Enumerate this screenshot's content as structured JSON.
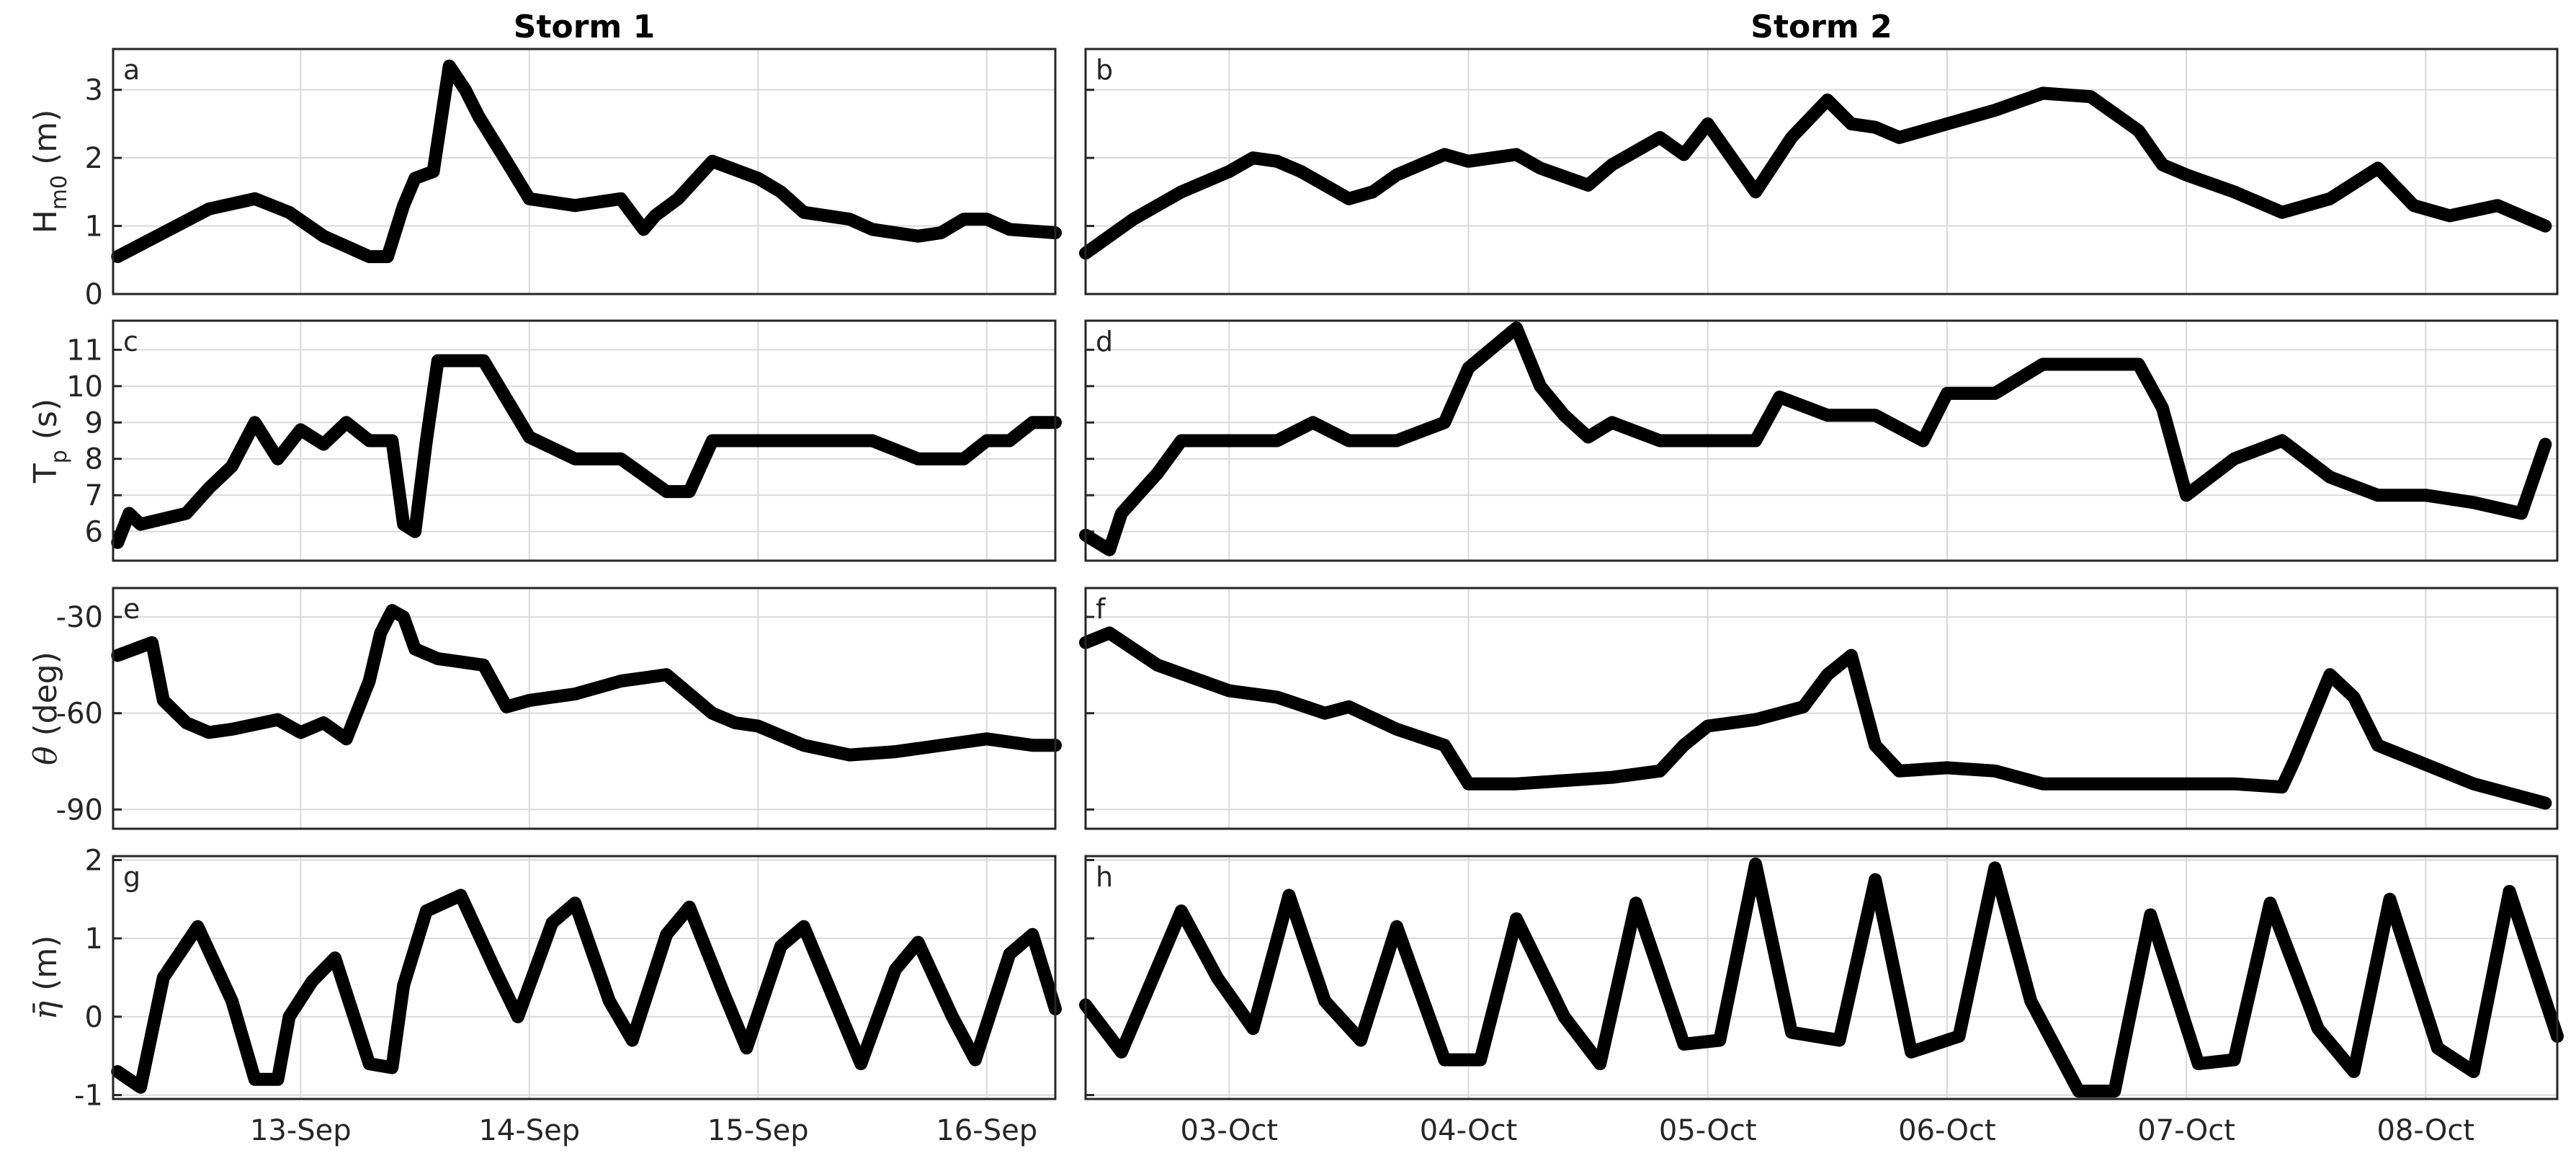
{
  "chart_data": [
    {
      "type": "line",
      "panel": "a",
      "title": "Storm 1",
      "ylabel": "H",
      "ylabel_sub": "m0",
      "ylabel_unit": " (m)",
      "ylim": [
        0,
        3.6
      ],
      "yticks": [
        0,
        1,
        2,
        3
      ],
      "x_dates": [
        "13-Sep",
        "14-Sep",
        "15-Sep",
        "16-Sep"
      ],
      "xlim_days": [
        -0.82,
        3.3
      ],
      "series": [
        {
          "x": [
            -0.8,
            -0.6,
            -0.4,
            -0.2,
            -0.05,
            0.1,
            0.2,
            0.3,
            0.38,
            0.45,
            0.5,
            0.58,
            0.65,
            0.72,
            0.78,
            0.9,
            1.0,
            1.2,
            1.4,
            1.5,
            1.55,
            1.65,
            1.8,
            2.0,
            2.1,
            2.2,
            2.4,
            2.5,
            2.7,
            2.8,
            2.9,
            3.0,
            3.1,
            3.3
          ],
          "values": [
            0.55,
            0.9,
            1.25,
            1.4,
            1.2,
            0.85,
            0.7,
            0.55,
            0.55,
            1.3,
            1.7,
            1.8,
            3.35,
            3.0,
            2.6,
            1.95,
            1.4,
            1.3,
            1.4,
            0.95,
            1.15,
            1.4,
            1.95,
            1.7,
            1.5,
            1.2,
            1.1,
            0.95,
            0.85,
            0.9,
            1.1,
            1.1,
            0.95,
            0.9
          ]
        }
      ]
    },
    {
      "type": "line",
      "panel": "b",
      "title": "Storm 2",
      "ylim": [
        0,
        3.6
      ],
      "yticks": [
        0,
        1,
        2,
        3
      ],
      "x_dates": [
        "03-Oct",
        "04-Oct",
        "05-Oct",
        "06-Oct",
        "07-Oct",
        "08-Oct"
      ],
      "xlim_days": [
        -0.6,
        5.55
      ],
      "series": [
        {
          "x": [
            -0.6,
            -0.4,
            -0.2,
            0.0,
            0.1,
            0.2,
            0.3,
            0.5,
            0.6,
            0.7,
            0.9,
            1.0,
            1.2,
            1.3,
            1.5,
            1.6,
            1.8,
            1.9,
            2.0,
            2.1,
            2.2,
            2.35,
            2.5,
            2.6,
            2.7,
            2.8,
            3.0,
            3.2,
            3.4,
            3.6,
            3.8,
            3.9,
            4.0,
            4.2,
            4.4,
            4.6,
            4.8,
            4.95,
            5.1,
            5.3,
            5.5
          ],
          "values": [
            0.6,
            1.1,
            1.5,
            1.8,
            2.0,
            1.95,
            1.8,
            1.4,
            1.5,
            1.75,
            2.05,
            1.95,
            2.05,
            1.85,
            1.6,
            1.9,
            2.3,
            2.05,
            2.5,
            2.0,
            1.5,
            2.3,
            2.85,
            2.5,
            2.45,
            2.3,
            2.5,
            2.7,
            2.95,
            2.9,
            2.4,
            1.9,
            1.75,
            1.5,
            1.2,
            1.4,
            1.85,
            1.3,
            1.15,
            1.3,
            1.0
          ]
        }
      ]
    },
    {
      "type": "line",
      "panel": "c",
      "ylabel": "T",
      "ylabel_sub": "p",
      "ylabel_unit": " (s)",
      "ylim": [
        5.2,
        11.8
      ],
      "yticks": [
        6,
        7,
        8,
        9,
        10,
        11
      ],
      "xlim_days": [
        -0.82,
        3.3
      ],
      "series": [
        {
          "x": [
            -0.8,
            -0.75,
            -0.7,
            -0.5,
            -0.4,
            -0.3,
            -0.2,
            -0.1,
            0.0,
            0.1,
            0.2,
            0.3,
            0.4,
            0.45,
            0.5,
            0.55,
            0.6,
            0.8,
            1.0,
            1.2,
            1.4,
            1.6,
            1.7,
            1.8,
            2.0,
            2.2,
            2.5,
            2.7,
            2.8,
            2.9,
            3.0,
            3.1,
            3.2,
            3.3
          ],
          "values": [
            5.7,
            6.5,
            6.2,
            6.5,
            7.2,
            7.8,
            9.0,
            8.0,
            8.8,
            8.4,
            9.0,
            8.5,
            8.5,
            6.2,
            6.0,
            8.5,
            10.7,
            10.7,
            8.6,
            8.0,
            8.0,
            7.1,
            7.1,
            8.5,
            8.5,
            8.5,
            8.5,
            8.0,
            8.0,
            8.0,
            8.5,
            8.5,
            9.0,
            9.0
          ]
        }
      ]
    },
    {
      "type": "line",
      "panel": "d",
      "ylim": [
        5.2,
        11.8
      ],
      "yticks": [
        6,
        7,
        8,
        9,
        10,
        11
      ],
      "xlim_days": [
        -0.6,
        5.55
      ],
      "series": [
        {
          "x": [
            -0.6,
            -0.5,
            -0.45,
            -0.3,
            -0.2,
            0.0,
            0.2,
            0.35,
            0.5,
            0.7,
            0.9,
            1.0,
            1.2,
            1.3,
            1.4,
            1.5,
            1.6,
            1.8,
            2.0,
            2.2,
            2.3,
            2.5,
            2.7,
            2.9,
            3.0,
            3.2,
            3.4,
            3.6,
            3.7,
            3.8,
            3.9,
            4.0,
            4.1,
            4.2,
            4.4,
            4.6,
            4.8,
            5.0,
            5.2,
            5.4,
            5.5
          ],
          "values": [
            5.9,
            5.5,
            6.5,
            7.6,
            8.5,
            8.5,
            8.5,
            9.0,
            8.5,
            8.5,
            9.0,
            10.5,
            11.6,
            10.0,
            9.2,
            8.6,
            9.0,
            8.5,
            8.5,
            8.5,
            9.7,
            9.2,
            9.2,
            8.5,
            9.8,
            9.8,
            10.6,
            10.6,
            10.6,
            10.6,
            9.4,
            7.0,
            7.5,
            8.0,
            8.5,
            7.5,
            7.0,
            7.0,
            6.8,
            6.5,
            8.4
          ]
        }
      ]
    },
    {
      "type": "line",
      "panel": "e",
      "ylabel": "θ",
      "ylabel_unit": " (deg)",
      "ylim": [
        -96,
        -21
      ],
      "yticks": [
        -90,
        -60,
        -30
      ],
      "xlim_days": [
        -0.82,
        3.3
      ],
      "series": [
        {
          "x": [
            -0.8,
            -0.65,
            -0.6,
            -0.5,
            -0.4,
            -0.3,
            -0.1,
            0.0,
            0.1,
            0.2,
            0.3,
            0.35,
            0.4,
            0.45,
            0.5,
            0.6,
            0.8,
            0.9,
            1.0,
            1.2,
            1.4,
            1.6,
            1.8,
            1.9,
            2.0,
            2.2,
            2.4,
            2.6,
            2.8,
            3.0,
            3.2,
            3.3
          ],
          "values": [
            -42,
            -38,
            -56,
            -63,
            -66,
            -65,
            -62,
            -66,
            -63,
            -68,
            -50,
            -35,
            -28,
            -30,
            -40,
            -43,
            -45,
            -58,
            -56,
            -54,
            -50,
            -48,
            -60,
            -63,
            -64,
            -70,
            -73,
            -72,
            -70,
            -68,
            -70,
            -70
          ]
        }
      ]
    },
    {
      "type": "line",
      "panel": "f",
      "ylim": [
        -96,
        -21
      ],
      "yticks": [
        -90,
        -60,
        -30
      ],
      "xlim_days": [
        -0.6,
        5.55
      ],
      "series": [
        {
          "x": [
            -0.6,
            -0.5,
            -0.3,
            0.0,
            0.2,
            0.4,
            0.5,
            0.7,
            0.9,
            1.0,
            1.2,
            1.4,
            1.6,
            1.8,
            1.9,
            2.0,
            2.2,
            2.4,
            2.5,
            2.6,
            2.7,
            2.8,
            3.0,
            3.2,
            3.4,
            3.6,
            3.8,
            4.0,
            4.2,
            4.4,
            4.45,
            4.6,
            4.7,
            4.8,
            5.0,
            5.2,
            5.5
          ],
          "values": [
            -38,
            -35,
            -45,
            -53,
            -55,
            -60,
            -58,
            -65,
            -70,
            -82,
            -82,
            -81,
            -80,
            -78,
            -70,
            -64,
            -62,
            -58,
            -48,
            -42,
            -70,
            -78,
            -77,
            -78,
            -82,
            -82,
            -82,
            -82,
            -82,
            -83,
            -75,
            -48,
            -55,
            -70,
            -76,
            -82,
            -88
          ]
        }
      ]
    },
    {
      "type": "line",
      "panel": "g",
      "ylabel": "η̄",
      "ylabel_unit": " (m)",
      "ylim": [
        -1.05,
        2.05
      ],
      "yticks": [
        -1,
        0,
        1,
        2
      ],
      "x_dates": [
        "13-Sep",
        "14-Sep",
        "15-Sep",
        "16-Sep"
      ],
      "xlim_days": [
        -0.82,
        3.3
      ],
      "series": [
        {
          "x": [
            -0.8,
            -0.7,
            -0.6,
            -0.45,
            -0.3,
            -0.2,
            -0.1,
            -0.05,
            0.05,
            0.15,
            0.3,
            0.4,
            0.45,
            0.55,
            0.7,
            0.85,
            0.95,
            1.1,
            1.2,
            1.35,
            1.45,
            1.6,
            1.7,
            1.85,
            1.95,
            2.1,
            2.2,
            2.35,
            2.45,
            2.6,
            2.7,
            2.85,
            2.95,
            3.1,
            3.2,
            3.3
          ],
          "values": [
            -0.7,
            -0.9,
            0.5,
            1.15,
            0.2,
            -0.8,
            -0.8,
            0.0,
            0.45,
            0.75,
            -0.6,
            -0.65,
            0.4,
            1.35,
            1.55,
            0.6,
            0.0,
            1.2,
            1.45,
            0.2,
            -0.3,
            1.05,
            1.4,
            0.3,
            -0.4,
            0.9,
            1.15,
            0.1,
            -0.6,
            0.6,
            0.95,
            0.0,
            -0.55,
            0.8,
            1.05,
            0.1
          ]
        }
      ]
    },
    {
      "type": "line",
      "panel": "h",
      "ylim": [
        -1.05,
        2.05
      ],
      "yticks": [
        -1,
        0,
        1,
        2
      ],
      "x_dates": [
        "03-Oct",
        "04-Oct",
        "05-Oct",
        "06-Oct",
        "07-Oct",
        "08-Oct"
      ],
      "xlim_days": [
        -0.6,
        5.55
      ],
      "series": [
        {
          "x": [
            -0.6,
            -0.45,
            -0.2,
            -0.05,
            0.1,
            0.25,
            0.4,
            0.55,
            0.7,
            0.9,
            1.05,
            1.2,
            1.4,
            1.55,
            1.7,
            1.9,
            2.05,
            2.2,
            2.35,
            2.55,
            2.7,
            2.85,
            3.05,
            3.2,
            3.35,
            3.55,
            3.7,
            3.85,
            4.05,
            4.2,
            4.35,
            4.55,
            4.7,
            4.85,
            5.05,
            5.2,
            5.35,
            5.55
          ],
          "values": [
            0.15,
            -0.45,
            1.35,
            0.5,
            -0.15,
            1.55,
            0.2,
            -0.3,
            1.15,
            -0.55,
            -0.55,
            1.25,
            0.0,
            -0.6,
            1.45,
            -0.35,
            -0.3,
            1.95,
            -0.2,
            -0.3,
            1.75,
            -0.45,
            -0.25,
            1.9,
            0.2,
            -0.95,
            -0.95,
            1.3,
            -0.6,
            -0.55,
            1.45,
            -0.15,
            -0.7,
            1.5,
            -0.4,
            -0.7,
            1.6,
            -0.25
          ]
        }
      ]
    }
  ]
}
